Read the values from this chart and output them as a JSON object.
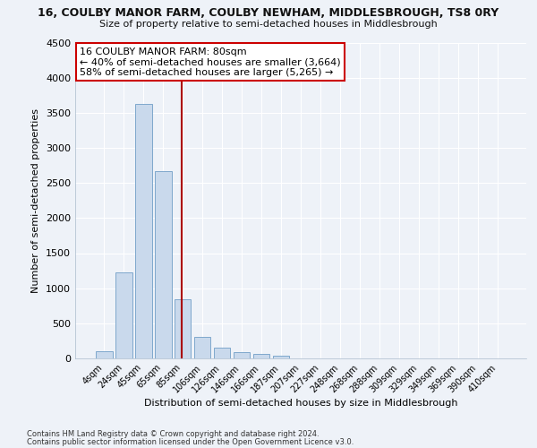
{
  "title": "16, COULBY MANOR FARM, COULBY NEWHAM, MIDDLESBROUGH, TS8 0RY",
  "subtitle": "Size of property relative to semi-detached houses in Middlesbrough",
  "xlabel": "Distribution of semi-detached houses by size in Middlesbrough",
  "ylabel": "Number of semi-detached properties",
  "bar_color": "#c9d9ec",
  "bar_edge_color": "#7fa8cc",
  "categories": [
    "4sqm",
    "24sqm",
    "45sqm",
    "65sqm",
    "85sqm",
    "106sqm",
    "126sqm",
    "146sqm",
    "166sqm",
    "187sqm",
    "207sqm",
    "227sqm",
    "248sqm",
    "268sqm",
    "288sqm",
    "309sqm",
    "329sqm",
    "349sqm",
    "369sqm",
    "390sqm",
    "410sqm"
  ],
  "values": [
    100,
    1220,
    3620,
    2670,
    840,
    305,
    155,
    90,
    65,
    40,
    5,
    3,
    2,
    1,
    0,
    0,
    0,
    0,
    0,
    0,
    0
  ],
  "vline_bin_index": 4,
  "annotation_title": "16 COULBY MANOR FARM: 80sqm",
  "annotation_line1": "← 40% of semi-detached houses are smaller (3,664)",
  "annotation_line2": "58% of semi-detached houses are larger (5,265) →",
  "annotation_box_color": "#ffffff",
  "annotation_box_edge_color": "#cc0000",
  "vline_color": "#aa0000",
  "ylim": [
    0,
    4500
  ],
  "yticks": [
    0,
    500,
    1000,
    1500,
    2000,
    2500,
    3000,
    3500,
    4000,
    4500
  ],
  "footnote1": "Contains HM Land Registry data © Crown copyright and database right 2024.",
  "footnote2": "Contains public sector information licensed under the Open Government Licence v3.0.",
  "background_color": "#eef2f8",
  "grid_color": "#ffffff"
}
